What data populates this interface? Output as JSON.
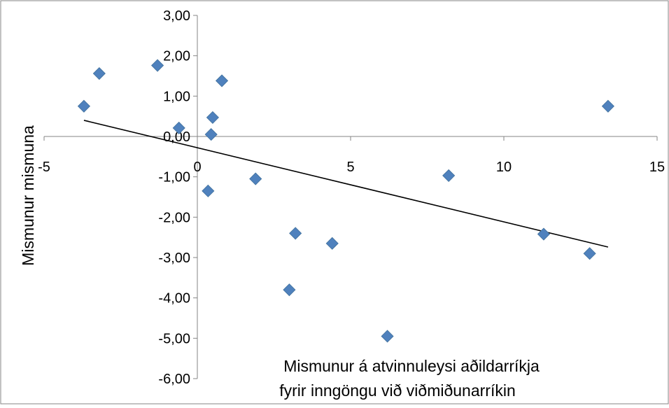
{
  "chart_data": {
    "type": "scatter",
    "xlabel_lines": [
      "Mismunur á atvinnuleysi aðildarríkja",
      "fyrir inngöngu við viðmiðunarríkin"
    ],
    "ylabel": "Mismunur mismuna",
    "xlim": [
      -5,
      15
    ],
    "ylim": [
      -6,
      3
    ],
    "x_ticks": [
      -5,
      0,
      5,
      10,
      15
    ],
    "x_tick_labels": [
      "-5",
      "0",
      "5",
      "10",
      "15"
    ],
    "y_ticks": [
      3,
      2,
      1,
      0,
      -1,
      -2,
      -3,
      -4,
      -5,
      -6
    ],
    "y_tick_labels": [
      "3,00",
      "2,00",
      "1,00",
      "0,00",
      "-1,00",
      "-2,00",
      "-3,00",
      "-4,00",
      "-5,00",
      "-6,00"
    ],
    "grid": false,
    "legend": false,
    "series": [
      {
        "marker": "diamond",
        "color": "#4F81BD",
        "points": [
          {
            "x": -3.7,
            "y": 0.75
          },
          {
            "x": -3.2,
            "y": 1.56
          },
          {
            "x": -1.3,
            "y": 1.76
          },
          {
            "x": -0.6,
            "y": 0.21
          },
          {
            "x": 0.35,
            "y": -1.35
          },
          {
            "x": 0.45,
            "y": 0.05
          },
          {
            "x": 0.5,
            "y": 0.47
          },
          {
            "x": 0.8,
            "y": 1.38
          },
          {
            "x": 1.9,
            "y": -1.05
          },
          {
            "x": 3.0,
            "y": -3.8
          },
          {
            "x": 3.2,
            "y": -2.4
          },
          {
            "x": 4.4,
            "y": -2.65
          },
          {
            "x": 6.2,
            "y": -4.95
          },
          {
            "x": 8.2,
            "y": -0.97
          },
          {
            "x": 11.3,
            "y": -2.42
          },
          {
            "x": 12.8,
            "y": -2.9
          },
          {
            "x": 13.4,
            "y": 0.75
          }
        ]
      }
    ],
    "trendline": {
      "type": "linear",
      "color": "#000000",
      "x_range": [
        -3.7,
        13.4
      ],
      "y_at_range": [
        0.4,
        -2.74
      ]
    }
  }
}
